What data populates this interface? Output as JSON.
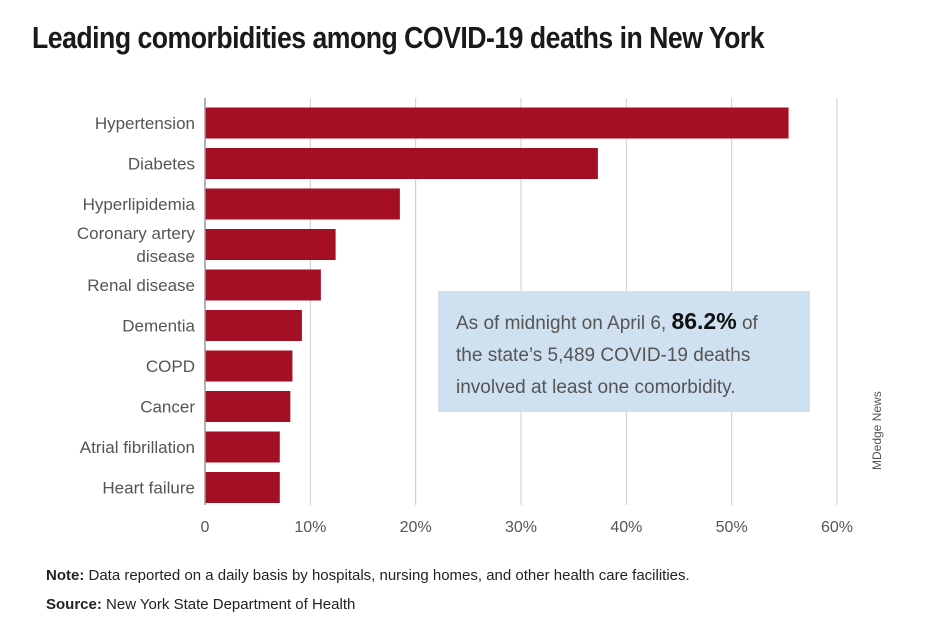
{
  "chart_data": {
    "type": "bar",
    "orientation": "horizontal",
    "title": "Leading comorbidities among COVID-19 deaths in New York",
    "categories": [
      "Hypertension",
      "Diabetes",
      "Hyperlipidemia",
      "Coronary artery disease",
      "Renal disease",
      "Dementia",
      "COPD",
      "Cancer",
      "Atrial fibrillation",
      "Heart failure"
    ],
    "category_lines": [
      [
        "Hypertension"
      ],
      [
        "Diabetes"
      ],
      [
        "Hyperlipidemia"
      ],
      [
        "Coronary artery",
        "disease"
      ],
      [
        "Renal disease"
      ],
      [
        "Dementia"
      ],
      [
        "COPD"
      ],
      [
        "Cancer"
      ],
      [
        "Atrial fibrillation"
      ],
      [
        "Heart failure"
      ]
    ],
    "values": [
      55.4,
      37.3,
      18.5,
      12.4,
      11.0,
      9.2,
      8.3,
      8.1,
      7.1,
      7.1
    ],
    "xlim": [
      0,
      60
    ],
    "xticks": [
      0,
      10,
      20,
      30,
      40,
      50,
      60
    ],
    "xtick_labels": [
      "0",
      "10%",
      "20%",
      "30%",
      "40%",
      "50%",
      "60%"
    ],
    "xlabel": "",
    "ylabel": "",
    "grid": true,
    "bar_color": "#a50f25",
    "grid_color": "#cccccc"
  },
  "callout": {
    "text_before": "As of midnight on April 6, ",
    "highlight": "86.2%",
    "text_after": " of",
    "line2": "the state’s 5,489 COVID-19 deaths",
    "line3": "involved at least one comorbidity.",
    "background": "#cfe0f0"
  },
  "credit": "MDedge News",
  "note": {
    "label": "Note:",
    "text": " Data reported on a daily basis by hospitals, nursing homes, and other health care facilities."
  },
  "source": {
    "label": "Source:",
    "text": " New York State Department of Health"
  }
}
